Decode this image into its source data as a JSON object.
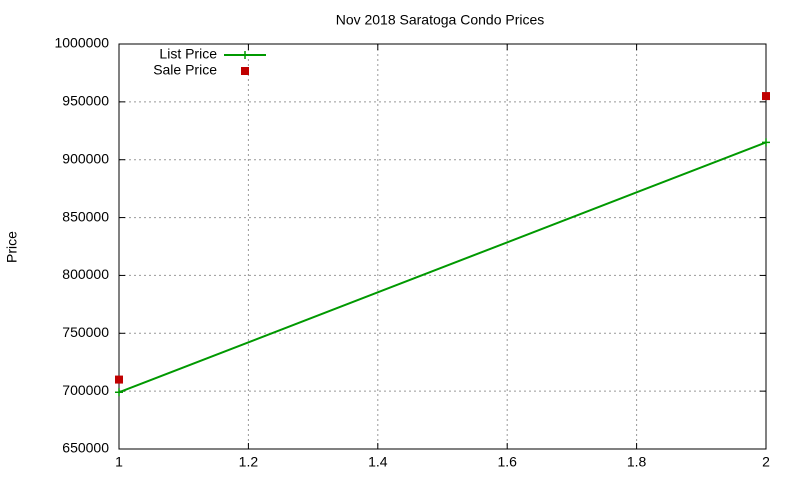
{
  "chart_data": {
    "type": "line",
    "title": "Nov 2018 Saratoga Condo Prices",
    "y_label": "Price",
    "x": [
      1,
      2
    ],
    "series": [
      {
        "name": "List Price",
        "color": "#009900",
        "style": "linespoints",
        "values": [
          699000,
          915000
        ]
      },
      {
        "name": "Sale Price",
        "color": "#c00000",
        "style": "points",
        "values": [
          710000,
          955000
        ]
      }
    ],
    "xlim": [
      1,
      2
    ],
    "xticks": [
      1,
      1.2,
      1.4,
      1.6,
      1.8,
      2
    ],
    "ylim": [
      650000,
      1000000
    ],
    "yticks": [
      650000,
      700000,
      750000,
      800000,
      850000,
      900000,
      950000,
      1000000
    ],
    "grid": true,
    "legend": "top-left"
  }
}
